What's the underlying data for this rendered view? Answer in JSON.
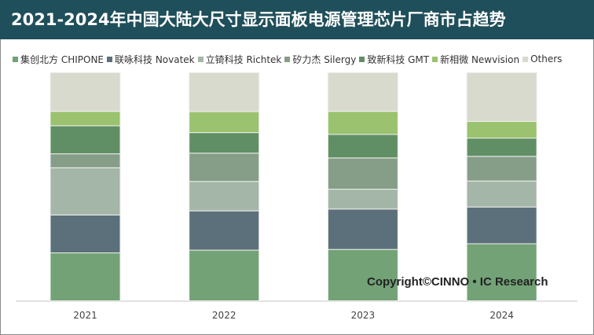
{
  "title": "2021-2024年中国大陆大尺寸显示面板电源管理芯片厂商市占趋势",
  "watermark": "Copyright©CINNO • IC Research",
  "chart_data": {
    "type": "bar",
    "stacked": true,
    "normalized": true,
    "title": "2021-2024年中国大陆大尺寸显示面板电源管理芯片厂商市占趋势",
    "categories": [
      "2021",
      "2022",
      "2023",
      "2024"
    ],
    "ylim": [
      0,
      100
    ],
    "grid": false,
    "legend": "top",
    "series": [
      {
        "name": "集创北方 CHIPONE",
        "color": "#72a276",
        "values": [
          21.0,
          22.2,
          22.5,
          25.0
        ]
      },
      {
        "name": "联咏科技 Novatek",
        "color": "#5b707a",
        "values": [
          16.6,
          17.2,
          17.7,
          16.1
        ]
      },
      {
        "name": "立锜科技 Richtek",
        "color": "#a4b6a8",
        "values": [
          20.7,
          12.9,
          8.7,
          11.4
        ]
      },
      {
        "name": "矽力杰 Silergy",
        "color": "#869e88",
        "values": [
          6.1,
          12.4,
          13.7,
          10.8
        ]
      },
      {
        "name": "致新科技 GMT",
        "color": "#618f65",
        "values": [
          12.3,
          9.0,
          10.3,
          8.0
        ]
      },
      {
        "name": "新相微 Newvision",
        "color": "#9bc26e",
        "values": [
          6.3,
          9.2,
          10.1,
          7.3
        ]
      },
      {
        "name": "Others",
        "color": "#d8dacd",
        "values": [
          17.0,
          17.1,
          17.0,
          21.4
        ]
      }
    ]
  }
}
